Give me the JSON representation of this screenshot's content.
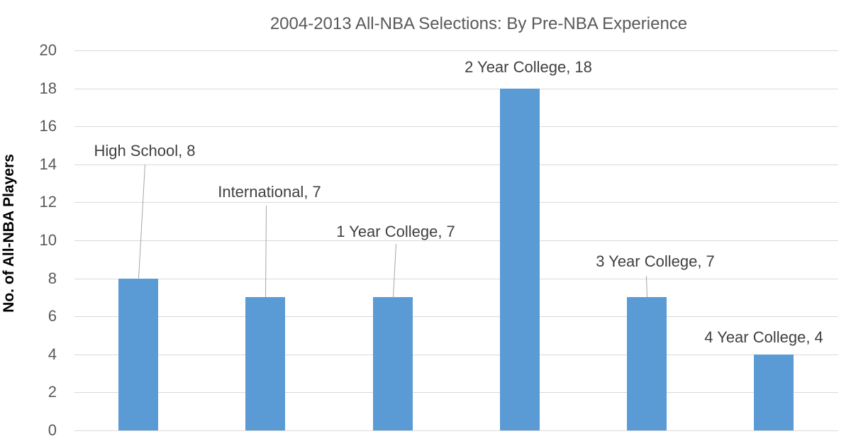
{
  "chart_data": {
    "type": "bar",
    "title": "2004-2013 All-NBA Selections: By Pre-NBA Experience",
    "xlabel": "",
    "ylabel": "No. of All-NBA Players",
    "ylim": [
      0,
      20
    ],
    "yticks": [
      "0",
      "2",
      "4",
      "6",
      "8",
      "10",
      "12",
      "14",
      "16",
      "18",
      "20"
    ],
    "grid": true,
    "legend": "none",
    "categories": [
      "High School",
      "International",
      "1 Year College",
      "2 Year College",
      "3 Year College",
      "4 Year College"
    ],
    "values": [
      8,
      7,
      7,
      18,
      7,
      4
    ],
    "data_labels": [
      "High School, 8",
      "International, 7",
      "1 Year College, 7",
      "2 Year College, 18",
      "3 Year College, 7",
      "4 Year College, 4"
    ],
    "bar_color": "#5b9bd5"
  }
}
